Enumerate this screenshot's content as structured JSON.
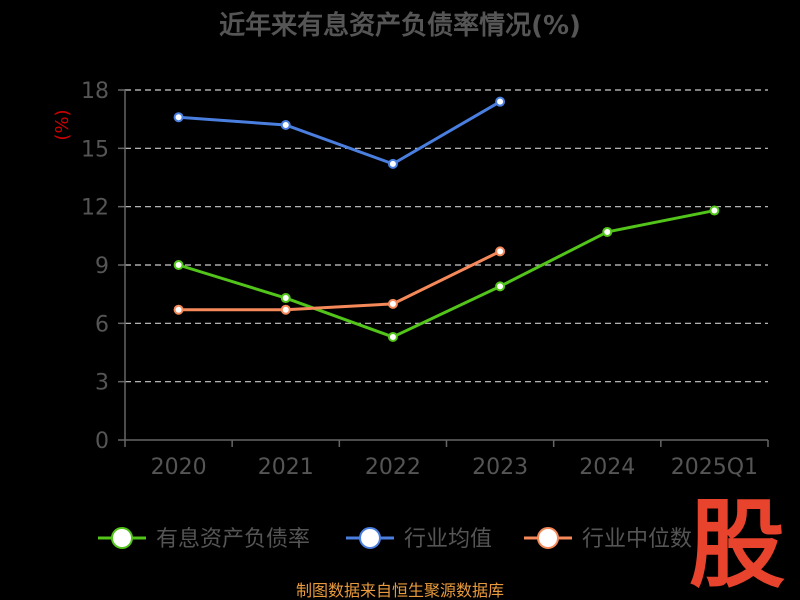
{
  "chart_data": {
    "type": "line",
    "title": "近年来有息资产负债率情况(%)",
    "ylabel": "(%)",
    "categories": [
      "2020",
      "2021",
      "2022",
      "2023",
      "2024",
      "2025Q1"
    ],
    "ylim": [
      0,
      18
    ],
    "yticks": [
      "0",
      "3",
      "6",
      "9",
      "12",
      "15",
      "18"
    ],
    "grid": true,
    "legend_position": "bottom",
    "series": [
      {
        "name": "有息资产负债率",
        "values": [
          9.0,
          7.3,
          5.3,
          7.9,
          10.7,
          11.8
        ],
        "color": "#52c41a"
      },
      {
        "name": "行业均值",
        "values": [
          16.6,
          16.2,
          14.2,
          17.4,
          null,
          null
        ],
        "color": "#4a7fe0"
      },
      {
        "name": "行业中位数",
        "values": [
          6.7,
          6.7,
          7.0,
          9.7,
          null,
          null
        ],
        "color": "#f5895a"
      }
    ]
  },
  "colors": {
    "title": "#555555",
    "axis": "#666666",
    "tick_text": "#555555",
    "grid": "#cccccc",
    "unit": "#cc0000",
    "source": "#e89a3c",
    "watermark": "#e8432d"
  },
  "source_text": "制图数据来自恒生聚源数据库",
  "watermark_char": "股"
}
